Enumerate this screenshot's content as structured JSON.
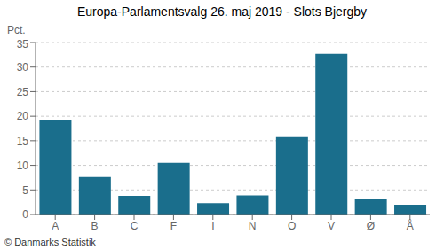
{
  "chart_data": {
    "type": "bar",
    "title": "Europa-Parlamentsvalg 26. maj 2019 - Slots Bjergby",
    "ylabel": "Pct.",
    "annotations": [
      "© Danmarks Statistik"
    ],
    "categories": [
      "A",
      "B",
      "C",
      "F",
      "I",
      "N",
      "O",
      "V",
      "Ø",
      "Å"
    ],
    "values": [
      19.3,
      7.6,
      3.8,
      10.5,
      2.3,
      3.9,
      15.9,
      32.7,
      3.2,
      2.0
    ],
    "color": "#1a6e8c",
    "ylim": [
      0,
      35
    ],
    "yticks": [
      0,
      5,
      10,
      15,
      20,
      25,
      30,
      35
    ],
    "grid": true
  }
}
